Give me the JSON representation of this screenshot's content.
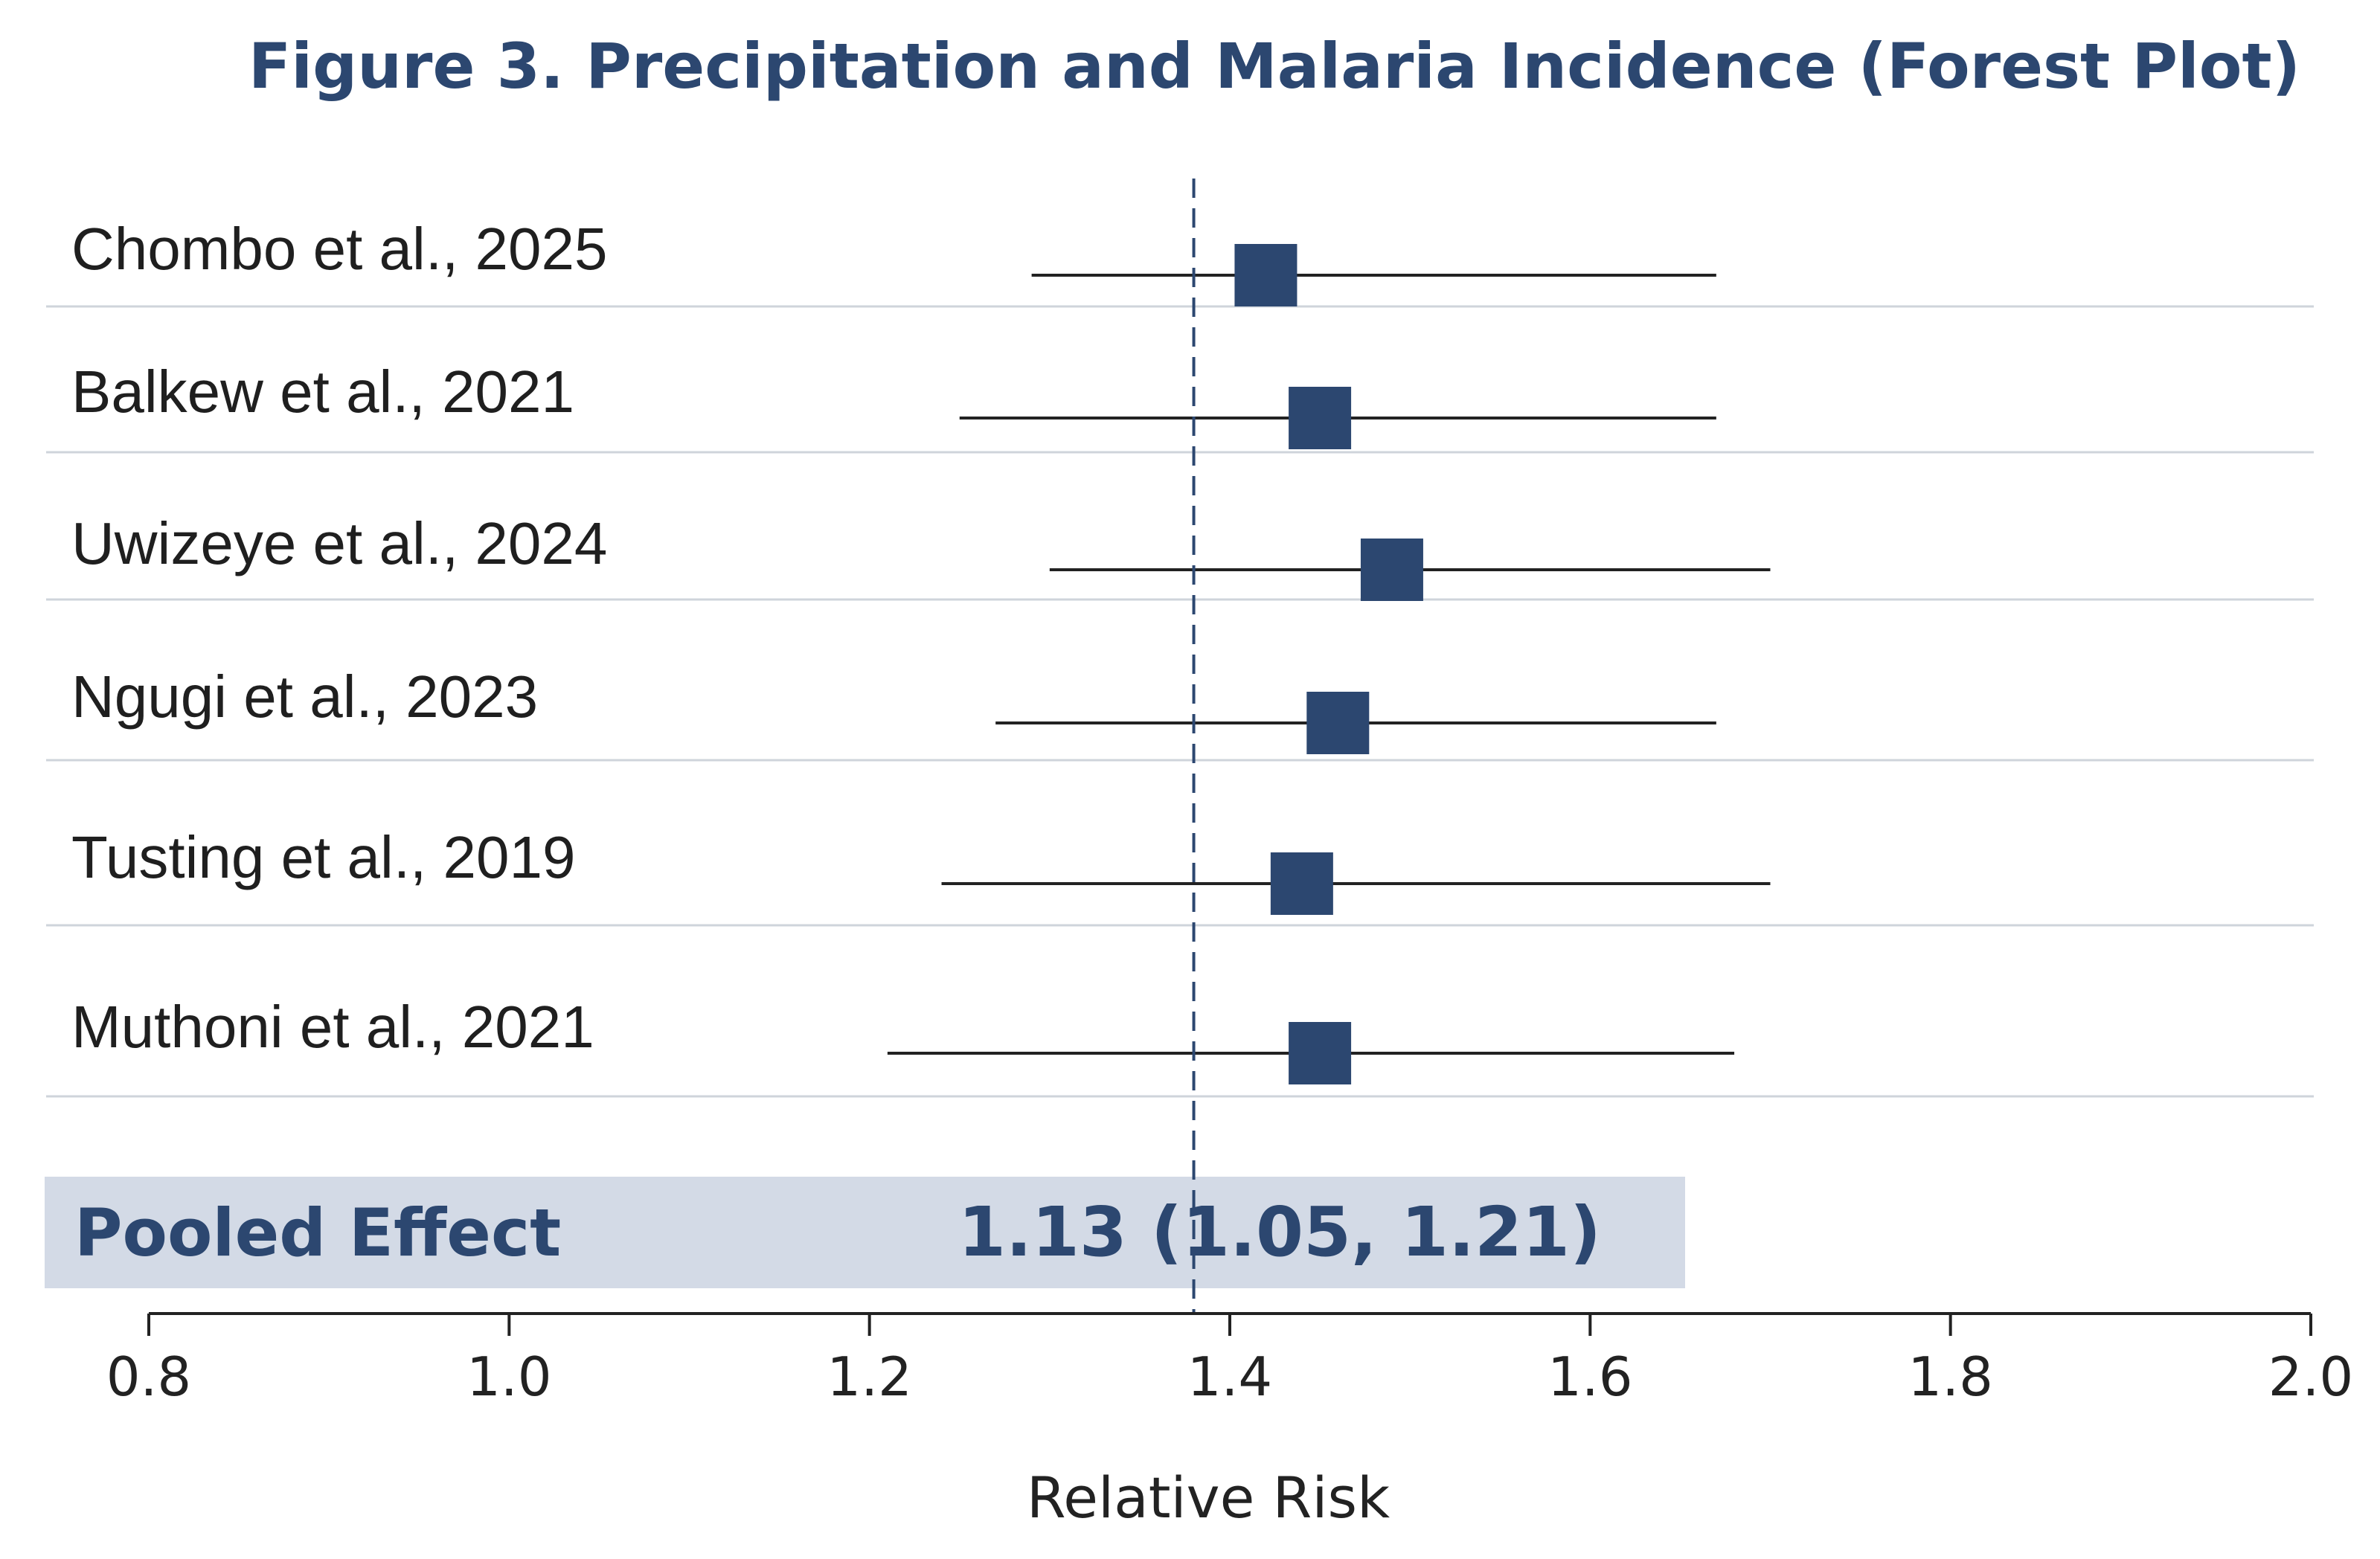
{
  "chart_data": {
    "type": "forest",
    "title": "Figure 3. Precipitation and Malaria Incidence (Forest Plot)",
    "xlabel": "Relative Risk",
    "xlim": [
      0.8,
      2.0
    ],
    "xticks": [
      "0.8",
      "1.0",
      "1.2",
      "1.4",
      "1.6",
      "1.8",
      "2.0"
    ],
    "reference_line": 1.38,
    "studies": [
      {
        "label": "Chombo et al., 2025",
        "estimate": 1.42,
        "ci_low": 1.29,
        "ci_high": 1.67
      },
      {
        "label": "Balkew et al., 2021",
        "estimate": 1.45,
        "ci_low": 1.25,
        "ci_high": 1.67
      },
      {
        "label": "Uwizeye et al., 2024",
        "estimate": 1.49,
        "ci_low": 1.3,
        "ci_high": 1.7
      },
      {
        "label": "Ngugi et al., 2023",
        "estimate": 1.46,
        "ci_low": 1.27,
        "ci_high": 1.67
      },
      {
        "label": "Tusting et al., 2019",
        "estimate": 1.44,
        "ci_low": 1.24,
        "ci_high": 1.7
      },
      {
        "label": "Muthoni et al., 2021",
        "estimate": 1.45,
        "ci_low": 1.21,
        "ci_high": 1.68
      }
    ],
    "pooled": {
      "label": "Pooled Effect",
      "value_text": "1.13 (1.05, 1.21)"
    },
    "colors": {
      "marker": "#2c4770",
      "title": "#2c4770",
      "pooled_band": "#d3dae6",
      "gridline": "#cfd4db"
    }
  }
}
